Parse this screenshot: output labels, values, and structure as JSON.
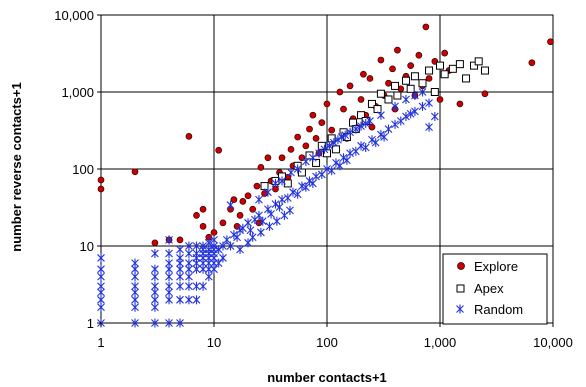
{
  "chart_data": {
    "type": "scatter",
    "xlabel": "number contacts+1",
    "ylabel": "number reverse contacts+1",
    "x_scale": "log",
    "y_scale": "log",
    "xlim": [
      1,
      10000
    ],
    "ylim": [
      1,
      10000
    ],
    "x_ticks": [
      "1",
      "10",
      "100",
      "1,000",
      "10,000"
    ],
    "y_ticks": [
      "1",
      "10",
      "100",
      "1,000",
      "10,000"
    ],
    "grid": true,
    "legend_position": "bottom-right",
    "legend": [
      "Explore",
      "Apex",
      "Random"
    ],
    "series": [
      {
        "name": "Explore",
        "marker": "filled-circle",
        "color": "#cc0000",
        "points": [
          [
            1,
            55
          ],
          [
            1,
            72
          ],
          [
            2,
            92
          ],
          [
            3,
            11
          ],
          [
            4,
            12
          ],
          [
            5,
            12
          ],
          [
            6,
            265
          ],
          [
            7,
            25
          ],
          [
            8,
            18
          ],
          [
            8,
            30
          ],
          [
            9,
            13
          ],
          [
            10,
            15
          ],
          [
            11,
            175
          ],
          [
            12,
            20
          ],
          [
            14,
            30
          ],
          [
            15,
            40
          ],
          [
            16,
            18
          ],
          [
            17,
            25
          ],
          [
            18,
            38
          ],
          [
            20,
            45
          ],
          [
            22,
            30
          ],
          [
            24,
            60
          ],
          [
            25,
            20
          ],
          [
            26,
            105
          ],
          [
            28,
            48
          ],
          [
            30,
            140
          ],
          [
            32,
            70
          ],
          [
            35,
            55
          ],
          [
            38,
            90
          ],
          [
            40,
            140
          ],
          [
            45,
            78
          ],
          [
            48,
            180
          ],
          [
            50,
            110
          ],
          [
            55,
            260
          ],
          [
            60,
            140
          ],
          [
            65,
            200
          ],
          [
            70,
            330
          ],
          [
            75,
            500
          ],
          [
            80,
            250
          ],
          [
            85,
            160
          ],
          [
            90,
            400
          ],
          [
            100,
            700
          ],
          [
            110,
            320
          ],
          [
            120,
            180
          ],
          [
            130,
            1000
          ],
          [
            140,
            600
          ],
          [
            150,
            250
          ],
          [
            160,
            1200
          ],
          [
            170,
            450
          ],
          [
            180,
            350
          ],
          [
            200,
            800
          ],
          [
            210,
            1700
          ],
          [
            220,
            500
          ],
          [
            240,
            1500
          ],
          [
            250,
            350
          ],
          [
            270,
            650
          ],
          [
            300,
            2600
          ],
          [
            320,
            900
          ],
          [
            350,
            1300
          ],
          [
            380,
            2000
          ],
          [
            400,
            600
          ],
          [
            420,
            3500
          ],
          [
            450,
            1100
          ],
          [
            500,
            1600
          ],
          [
            550,
            2200
          ],
          [
            600,
            900
          ],
          [
            650,
            3000
          ],
          [
            700,
            1200
          ],
          [
            750,
            7000
          ],
          [
            800,
            1500
          ],
          [
            900,
            2500
          ],
          [
            1000,
            800
          ],
          [
            1100,
            3200
          ],
          [
            1200,
            1900
          ],
          [
            1500,
            700
          ],
          [
            2500,
            950
          ],
          [
            6500,
            2400
          ],
          [
            9500,
            4500
          ]
        ]
      },
      {
        "name": "Apex",
        "marker": "open-square",
        "color": "#000000",
        "points": [
          [
            28,
            60
          ],
          [
            35,
            70
          ],
          [
            40,
            80
          ],
          [
            45,
            65
          ],
          [
            55,
            110
          ],
          [
            60,
            90
          ],
          [
            70,
            150
          ],
          [
            80,
            120
          ],
          [
            90,
            200
          ],
          [
            100,
            160
          ],
          [
            110,
            250
          ],
          [
            120,
            180
          ],
          [
            140,
            300
          ],
          [
            150,
            260
          ],
          [
            170,
            400
          ],
          [
            180,
            330
          ],
          [
            200,
            500
          ],
          [
            220,
            420
          ],
          [
            250,
            700
          ],
          [
            280,
            600
          ],
          [
            300,
            950
          ],
          [
            350,
            800
          ],
          [
            400,
            1200
          ],
          [
            420,
            900
          ],
          [
            500,
            1400
          ],
          [
            550,
            1100
          ],
          [
            600,
            1600
          ],
          [
            700,
            1300
          ],
          [
            800,
            1900
          ],
          [
            900,
            1000
          ],
          [
            1000,
            2200
          ],
          [
            1100,
            1700
          ],
          [
            1300,
            2000
          ],
          [
            1500,
            2300
          ],
          [
            1700,
            1500
          ],
          [
            2000,
            2200
          ],
          [
            2200,
            2500
          ],
          [
            2500,
            1900
          ]
        ]
      },
      {
        "name": "Random",
        "marker": "star",
        "color": "#2233dd",
        "points": [
          [
            1,
            1
          ],
          [
            1,
            1.6
          ],
          [
            1,
            2
          ],
          [
            1,
            2.5
          ],
          [
            1,
            3
          ],
          [
            1,
            4
          ],
          [
            1,
            5
          ],
          [
            1,
            7
          ],
          [
            2,
            1
          ],
          [
            2,
            1.6
          ],
          [
            2,
            2
          ],
          [
            2,
            2.5
          ],
          [
            2,
            3
          ],
          [
            2,
            4
          ],
          [
            2,
            5
          ],
          [
            2,
            6
          ],
          [
            3,
            1
          ],
          [
            3,
            1.6
          ],
          [
            3,
            2
          ],
          [
            3,
            2.5
          ],
          [
            3,
            3
          ],
          [
            3,
            4
          ],
          [
            3,
            5
          ],
          [
            3,
            8
          ],
          [
            4,
            1
          ],
          [
            4,
            2
          ],
          [
            4,
            2.5
          ],
          [
            4,
            3
          ],
          [
            4,
            4
          ],
          [
            4,
            5
          ],
          [
            4,
            6
          ],
          [
            4,
            8
          ],
          [
            4,
            12
          ],
          [
            5,
            1
          ],
          [
            5,
            2
          ],
          [
            5,
            3
          ],
          [
            5,
            4
          ],
          [
            5,
            5
          ],
          [
            5,
            6
          ],
          [
            5,
            7
          ],
          [
            5,
            9
          ],
          [
            6,
            2
          ],
          [
            6,
            3
          ],
          [
            6,
            4
          ],
          [
            6,
            5
          ],
          [
            6,
            6
          ],
          [
            6,
            8
          ],
          [
            6,
            10
          ],
          [
            7,
            2
          ],
          [
            7,
            3
          ],
          [
            7,
            5
          ],
          [
            7,
            6
          ],
          [
            7,
            7
          ],
          [
            7,
            8
          ],
          [
            7,
            10
          ],
          [
            8,
            3
          ],
          [
            8,
            5
          ],
          [
            8,
            6
          ],
          [
            8,
            7
          ],
          [
            8,
            8
          ],
          [
            8,
            9
          ],
          [
            8,
            10
          ],
          [
            9,
            4
          ],
          [
            9,
            5
          ],
          [
            9,
            6
          ],
          [
            9,
            7
          ],
          [
            9,
            8
          ],
          [
            9,
            9
          ],
          [
            9,
            11
          ],
          [
            10,
            5
          ],
          [
            10,
            6
          ],
          [
            10,
            7
          ],
          [
            10,
            8
          ],
          [
            10,
            9
          ],
          [
            10,
            10
          ],
          [
            10,
            12
          ],
          [
            11,
            6
          ],
          [
            11,
            9
          ],
          [
            12,
            7
          ],
          [
            12,
            10
          ],
          [
            13,
            12
          ],
          [
            14,
            10
          ],
          [
            15,
            14
          ],
          [
            16,
            13
          ],
          [
            17,
            16
          ],
          [
            18,
            17
          ],
          [
            20,
            20
          ],
          [
            21,
            16
          ],
          [
            23,
            22
          ],
          [
            25,
            25
          ],
          [
            27,
            21
          ],
          [
            30,
            30
          ],
          [
            32,
            26
          ],
          [
            35,
            35
          ],
          [
            38,
            32
          ],
          [
            40,
            40
          ],
          [
            45,
            42
          ],
          [
            50,
            50
          ],
          [
            55,
            47
          ],
          [
            60,
            60
          ],
          [
            65,
            58
          ],
          [
            70,
            70
          ],
          [
            75,
            65
          ],
          [
            80,
            80
          ],
          [
            90,
            85
          ],
          [
            100,
            100
          ],
          [
            110,
            95
          ],
          [
            120,
            120
          ],
          [
            130,
            110
          ],
          [
            140,
            140
          ],
          [
            150,
            130
          ],
          [
            160,
            160
          ],
          [
            180,
            170
          ],
          [
            200,
            200
          ],
          [
            220,
            190
          ],
          [
            250,
            240
          ],
          [
            270,
            220
          ],
          [
            300,
            280
          ],
          [
            320,
            260
          ],
          [
            350,
            330
          ],
          [
            400,
            380
          ],
          [
            450,
            420
          ],
          [
            500,
            480
          ],
          [
            550,
            520
          ],
          [
            600,
            560
          ],
          [
            700,
            650
          ],
          [
            800,
            720
          ],
          [
            14,
            34
          ],
          [
            17,
            9
          ],
          [
            20,
            11
          ],
          [
            22,
            13
          ],
          [
            26,
            15
          ],
          [
            31,
            18
          ],
          [
            36,
            21
          ],
          [
            42,
            25
          ],
          [
            47,
            29
          ],
          [
            25,
            40
          ],
          [
            30,
            50
          ],
          [
            35,
            65
          ],
          [
            40,
            70
          ],
          [
            48,
            90
          ],
          [
            55,
            100
          ],
          [
            65,
            125
          ],
          [
            75,
            140
          ],
          [
            85,
            160
          ],
          [
            95,
            180
          ],
          [
            105,
            200
          ],
          [
            115,
            220
          ],
          [
            125,
            240
          ],
          [
            135,
            260
          ],
          [
            145,
            275
          ],
          [
            160,
            300
          ],
          [
            180,
            330
          ],
          [
            200,
            360
          ],
          [
            220,
            390
          ],
          [
            240,
            420
          ],
          [
            300,
            500
          ],
          [
            400,
            650
          ],
          [
            500,
            800
          ],
          [
            600,
            900
          ],
          [
            700,
            1000
          ],
          [
            800,
            350
          ],
          [
            900,
            480
          ]
        ]
      }
    ]
  }
}
